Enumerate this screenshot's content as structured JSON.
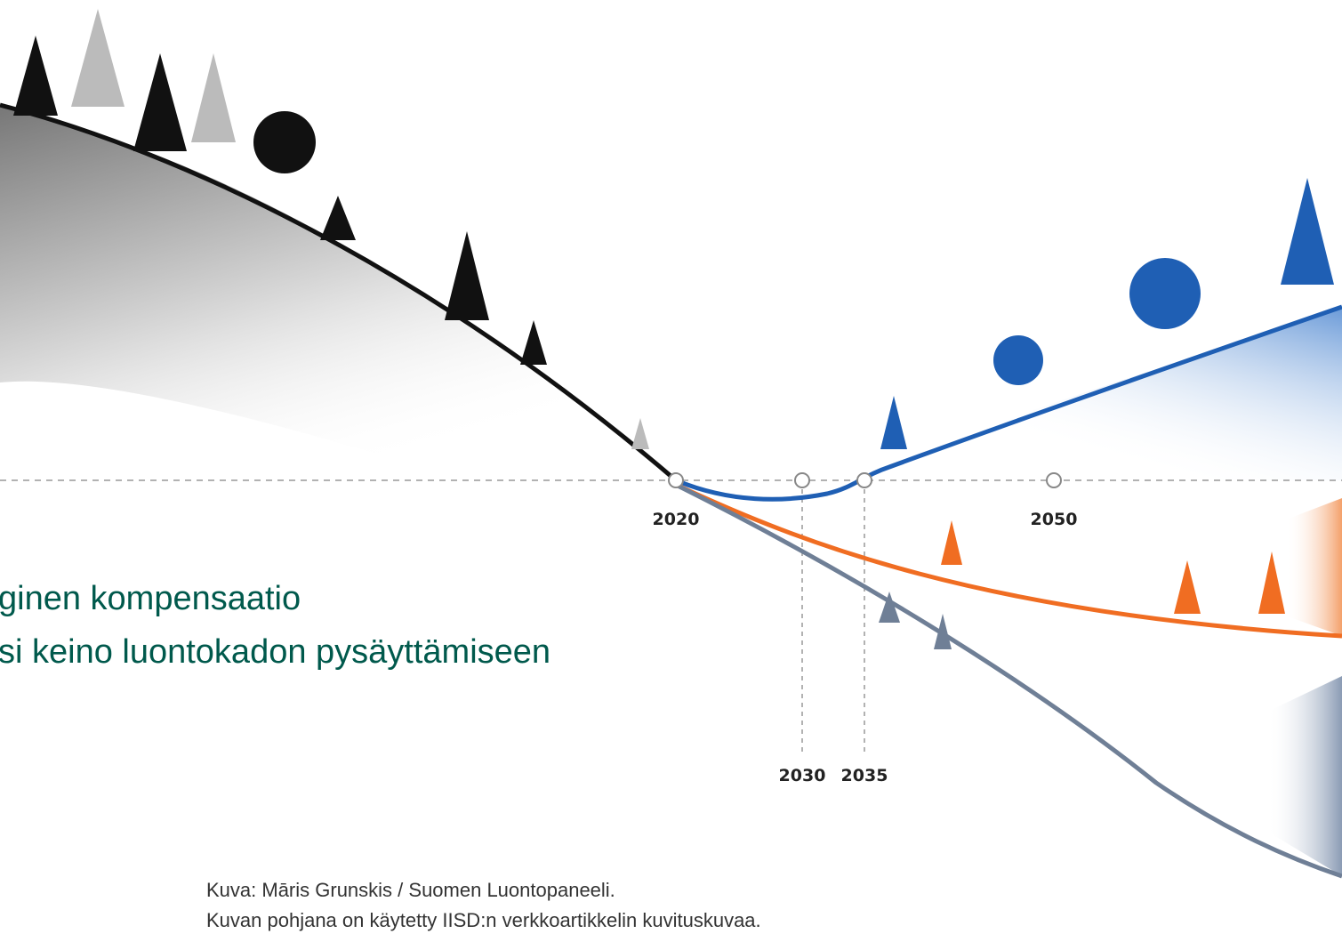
{
  "title": {
    "lines": [
      "ginen kompensaatio",
      "si keino luontokadon pysäyttämiseen"
    ]
  },
  "timeline": {
    "labels": [
      "2020",
      "2030",
      "2035",
      "2050"
    ]
  },
  "credits": [
    "Kuva: Māris Grunskis / Suomen Luontopaneeli.",
    "Kuvan pohjana on käytetty IISD:n verkkoartikkelin kuvituskuvaa."
  ]
}
